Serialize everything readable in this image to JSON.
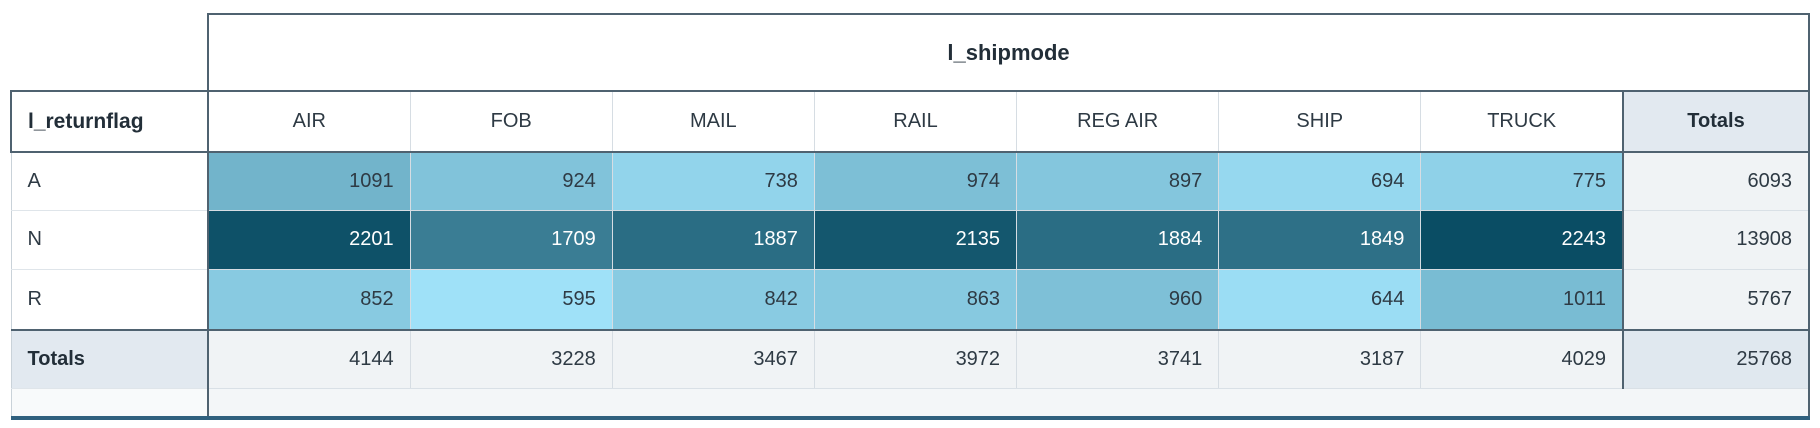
{
  "table": {
    "column_dimension": "l_shipmode",
    "row_dimension": "l_returnflag",
    "columns": [
      "AIR",
      "FOB",
      "MAIL",
      "RAIL",
      "REG AIR",
      "SHIP",
      "TRUCK"
    ],
    "totals_label": "Totals",
    "rows": [
      {
        "label": "A",
        "values": [
          1091,
          924,
          738,
          974,
          897,
          694,
          775
        ],
        "total": 6093
      },
      {
        "label": "N",
        "values": [
          2201,
          1709,
          1887,
          2135,
          1884,
          1849,
          2243
        ],
        "total": 13908
      },
      {
        "label": "R",
        "values": [
          852,
          595,
          842,
          863,
          960,
          644,
          1011
        ],
        "total": 5767
      }
    ],
    "column_totals": [
      4144,
      3228,
      3467,
      3972,
      3741,
      3187,
      4029
    ],
    "grand_total": 25768
  },
  "heatmap": {
    "min_value": 595,
    "max_value": 2243,
    "min_color": "#9FE1F8",
    "max_color": "#0A4D64",
    "dark_text": "#2E3A44",
    "light_text": "#FFFFFF"
  },
  "colors": {
    "structural_border": "#4F6270",
    "light_border": "#D6DDE3",
    "totals_header_bg": "#E2E9F0",
    "totals_cell_bg": "#F0F3F5",
    "grand_total_bg": "#E0E8EF",
    "bottom_bar": "#2F607E",
    "header_text": "#222E38",
    "cell_text": "#2E3A44"
  },
  "chart_data": {
    "type": "heatmap",
    "title": "",
    "x_dimension": "l_shipmode",
    "y_dimension": "l_returnflag",
    "x_categories": [
      "AIR",
      "FOB",
      "MAIL",
      "RAIL",
      "REG AIR",
      "SHIP",
      "TRUCK"
    ],
    "y_categories": [
      "A",
      "N",
      "R"
    ],
    "values": [
      [
        1091,
        924,
        738,
        974,
        897,
        694,
        775
      ],
      [
        2201,
        1709,
        1887,
        2135,
        1884,
        1849,
        2243
      ],
      [
        852,
        595,
        842,
        863,
        960,
        644,
        1011
      ]
    ],
    "row_totals": [
      6093,
      13908,
      5767
    ],
    "column_totals": [
      4144,
      3228,
      3467,
      3972,
      3741,
      3187,
      4029
    ],
    "grand_total": 25768,
    "value_range": [
      595,
      2243
    ],
    "color_range": [
      "#9FE1F8",
      "#0A4D64"
    ],
    "legend_position": "none"
  }
}
